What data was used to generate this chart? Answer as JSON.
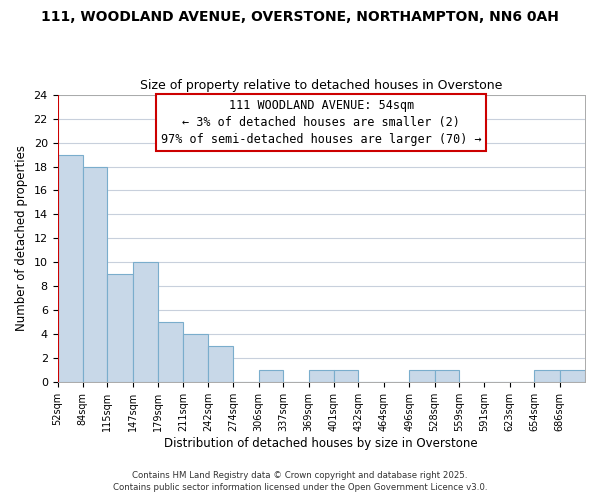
{
  "title_line1": "111, WOODLAND AVENUE, OVERSTONE, NORTHAMPTON, NN6 0AH",
  "title_line2": "Size of property relative to detached houses in Overstone",
  "xlabel": "Distribution of detached houses by size in Overstone",
  "ylabel": "Number of detached properties",
  "bar_edges": [
    52,
    84,
    115,
    147,
    179,
    211,
    242,
    274,
    306,
    337,
    369,
    401,
    432,
    464,
    496,
    528,
    559,
    591,
    623,
    654,
    686,
    718
  ],
  "bar_heights": [
    19,
    18,
    9,
    10,
    5,
    4,
    3,
    0,
    1,
    0,
    1,
    1,
    0,
    0,
    1,
    1,
    0,
    0,
    0,
    1,
    1
  ],
  "bar_color": "#c8d8e8",
  "bar_edgecolor": "#7aadcc",
  "annotation_title": "111 WOODLAND AVENUE: 54sqm",
  "annotation_line2": "← 3% of detached houses are smaller (2)",
  "annotation_line3": "97% of semi-detached houses are larger (70) →",
  "annotation_box_edgecolor": "#cc0000",
  "annotation_box_facecolor": "#ffffff",
  "marker_x": 52,
  "ylim": [
    0,
    24
  ],
  "yticks": [
    0,
    2,
    4,
    6,
    8,
    10,
    12,
    14,
    16,
    18,
    20,
    22,
    24
  ],
  "xlim_left": 52,
  "xlim_right": 718,
  "tick_positions": [
    52,
    84,
    115,
    147,
    179,
    211,
    242,
    274,
    306,
    337,
    369,
    401,
    432,
    464,
    496,
    528,
    559,
    591,
    623,
    654,
    686
  ],
  "tick_labels": [
    "52sqm",
    "84sqm",
    "115sqm",
    "147sqm",
    "179sqm",
    "211sqm",
    "242sqm",
    "274sqm",
    "306sqm",
    "337sqm",
    "369sqm",
    "401sqm",
    "432sqm",
    "464sqm",
    "496sqm",
    "528sqm",
    "559sqm",
    "591sqm",
    "623sqm",
    "654sqm",
    "686sqm"
  ],
  "footer_line1": "Contains HM Land Registry data © Crown copyright and database right 2025.",
  "footer_line2": "Contains public sector information licensed under the Open Government Licence v3.0.",
  "background_color": "#ffffff",
  "grid_color": "#c8d0dc"
}
